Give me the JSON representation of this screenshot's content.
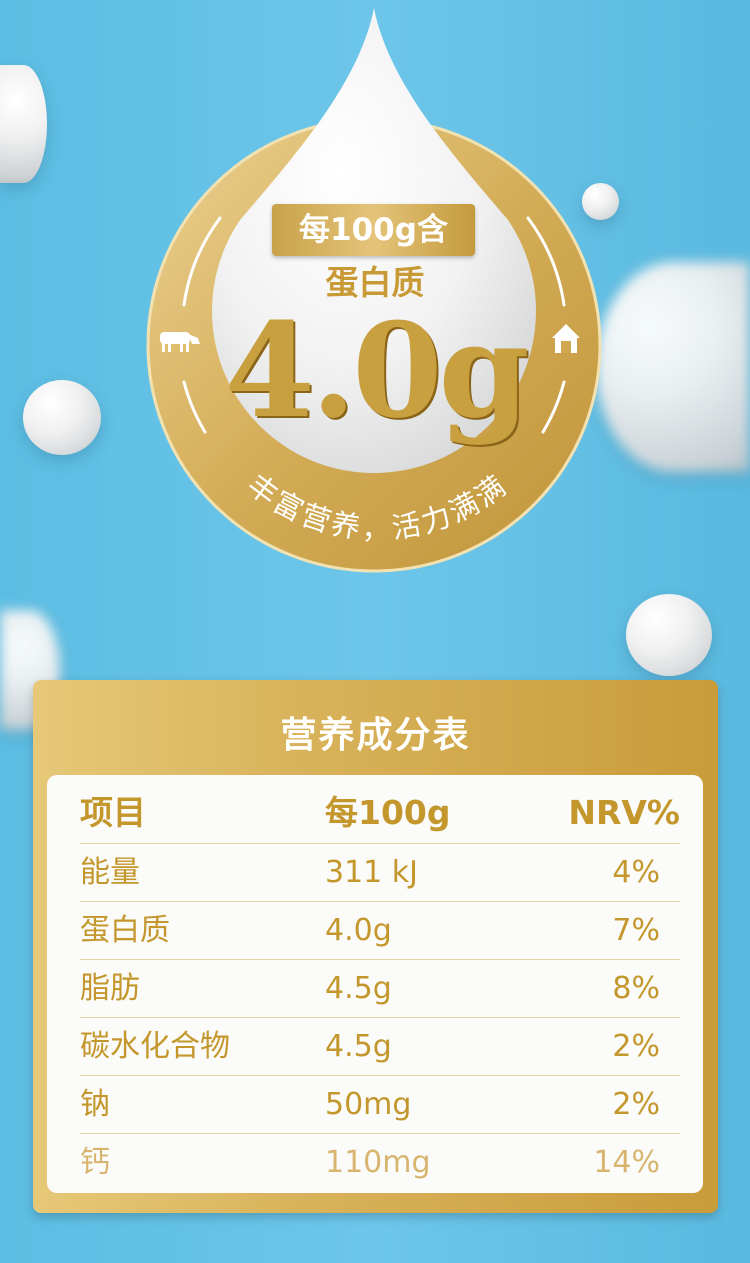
{
  "badge": {
    "per_label": "每100g含",
    "nutrient": "蛋白质",
    "value": "4.0g",
    "slogan": "丰富营养，活力满满",
    "left_icon": "cow-icon",
    "right_icon": "barn-icon"
  },
  "colors": {
    "background": "#62c0e5",
    "gold": "#c9a040",
    "text_gold": "#c4972c"
  },
  "table": {
    "title": "营养成分表",
    "headers": [
      "项目",
      "每100g",
      "NRV%"
    ],
    "rows": [
      [
        "能量",
        "311 kJ",
        "4%"
      ],
      [
        "蛋白质",
        "4.0g",
        "7%"
      ],
      [
        "脂肪",
        "4.5g",
        "8%"
      ],
      [
        "碳水化合物",
        "4.5g",
        "2%"
      ],
      [
        "钠",
        "50mg",
        "2%"
      ],
      [
        "钙",
        "110mg",
        "14%"
      ]
    ]
  }
}
